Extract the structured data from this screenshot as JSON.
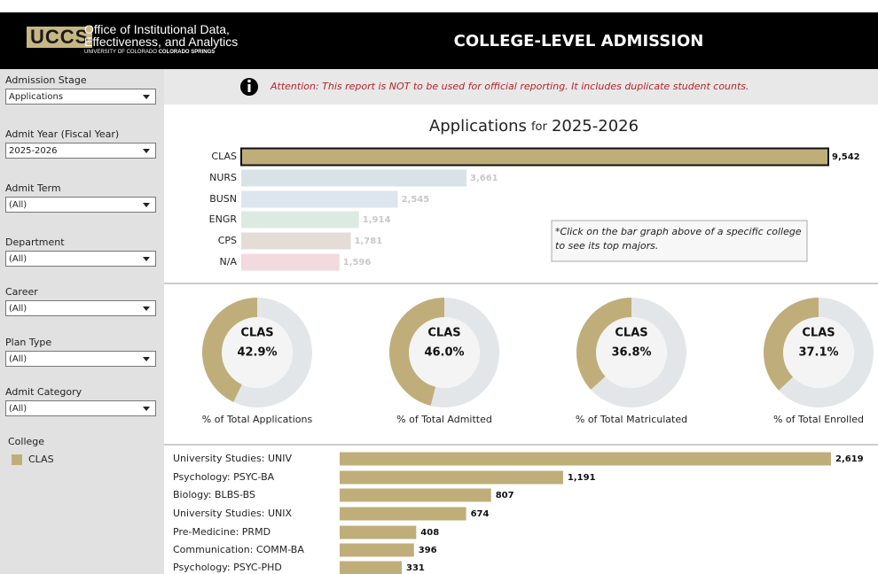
{
  "header": {
    "logo": "UCCS",
    "org_lines": [
      "Office of Institutional Data,",
      "Effectiveness, and Analytics"
    ],
    "university": "UNIVERSITY OF COLORADO",
    "campus": "COLORADO SPRINGS",
    "title": "COLLEGE-LEVEL ADMISSION"
  },
  "filters": [
    {
      "label": "Admission Stage",
      "value": "Applications"
    },
    {
      "label": "Admit Year (Fiscal Year)",
      "value": "2025-2026"
    },
    {
      "label": "Admit Term",
      "value": "(All)"
    },
    {
      "label": "Department",
      "value": "(All)"
    },
    {
      "label": "Career",
      "value": "(All)"
    },
    {
      "label": "Plan Type",
      "value": "(All)"
    },
    {
      "label": "Admit Category",
      "value": "(All)"
    }
  ],
  "legend": {
    "title": "College",
    "items": [
      {
        "name": "CLAS",
        "color": "#bfae7a"
      }
    ]
  },
  "notice": "Attention: This report is NOT to be used for official reporting. It includes duplicate student counts.",
  "college_chart": {
    "title_main": "Applications",
    "title_for": "for",
    "title_year": "2025-2026",
    "categories": [
      "CLAS",
      "NURS",
      "BUSN",
      "ENGR",
      "CPS",
      "N/A"
    ],
    "values": [
      9542,
      3661,
      2545,
      1914,
      1781,
      1596
    ],
    "value_labels": [
      "9,542",
      "3,661",
      "2,545",
      "1,914",
      "1,781",
      "1,596"
    ],
    "colors": [
      "#bfae7a",
      "#d9e3e7",
      "#dde6ee",
      "#dcebe2",
      "#e4ddd7",
      "#f3dade"
    ],
    "note": "*Click on the bar graph above of a specific college to see its top majors."
  },
  "donuts": [
    {
      "label": "CLAS",
      "value": 42.9,
      "value_label": "42.9%",
      "caption": "% of Total Applications"
    },
    {
      "label": "CLAS",
      "value": 46.0,
      "value_label": "46.0%",
      "caption": "% of Total Admitted"
    },
    {
      "label": "CLAS",
      "value": 36.8,
      "value_label": "36.8%",
      "caption": "% of Total Matriculated"
    },
    {
      "label": "CLAS",
      "value": 37.1,
      "value_label": "37.1%",
      "caption": "% of Total Enrolled"
    }
  ],
  "majors_chart": {
    "color": "#bfae7a",
    "categories": [
      "University Studies: UNIV",
      "Psychology: PSYC-BA",
      "Biology: BLBS-BS",
      "University Studies: UNIX",
      "Pre-Medicine: PRMD",
      "Communication: COMM-BA",
      "Psychology: PSYC-PHD"
    ],
    "values": [
      2619,
      1191,
      807,
      674,
      408,
      396,
      331
    ],
    "value_labels": [
      "2,619",
      "1,191",
      "807",
      "674",
      "408",
      "396",
      "331"
    ]
  }
}
